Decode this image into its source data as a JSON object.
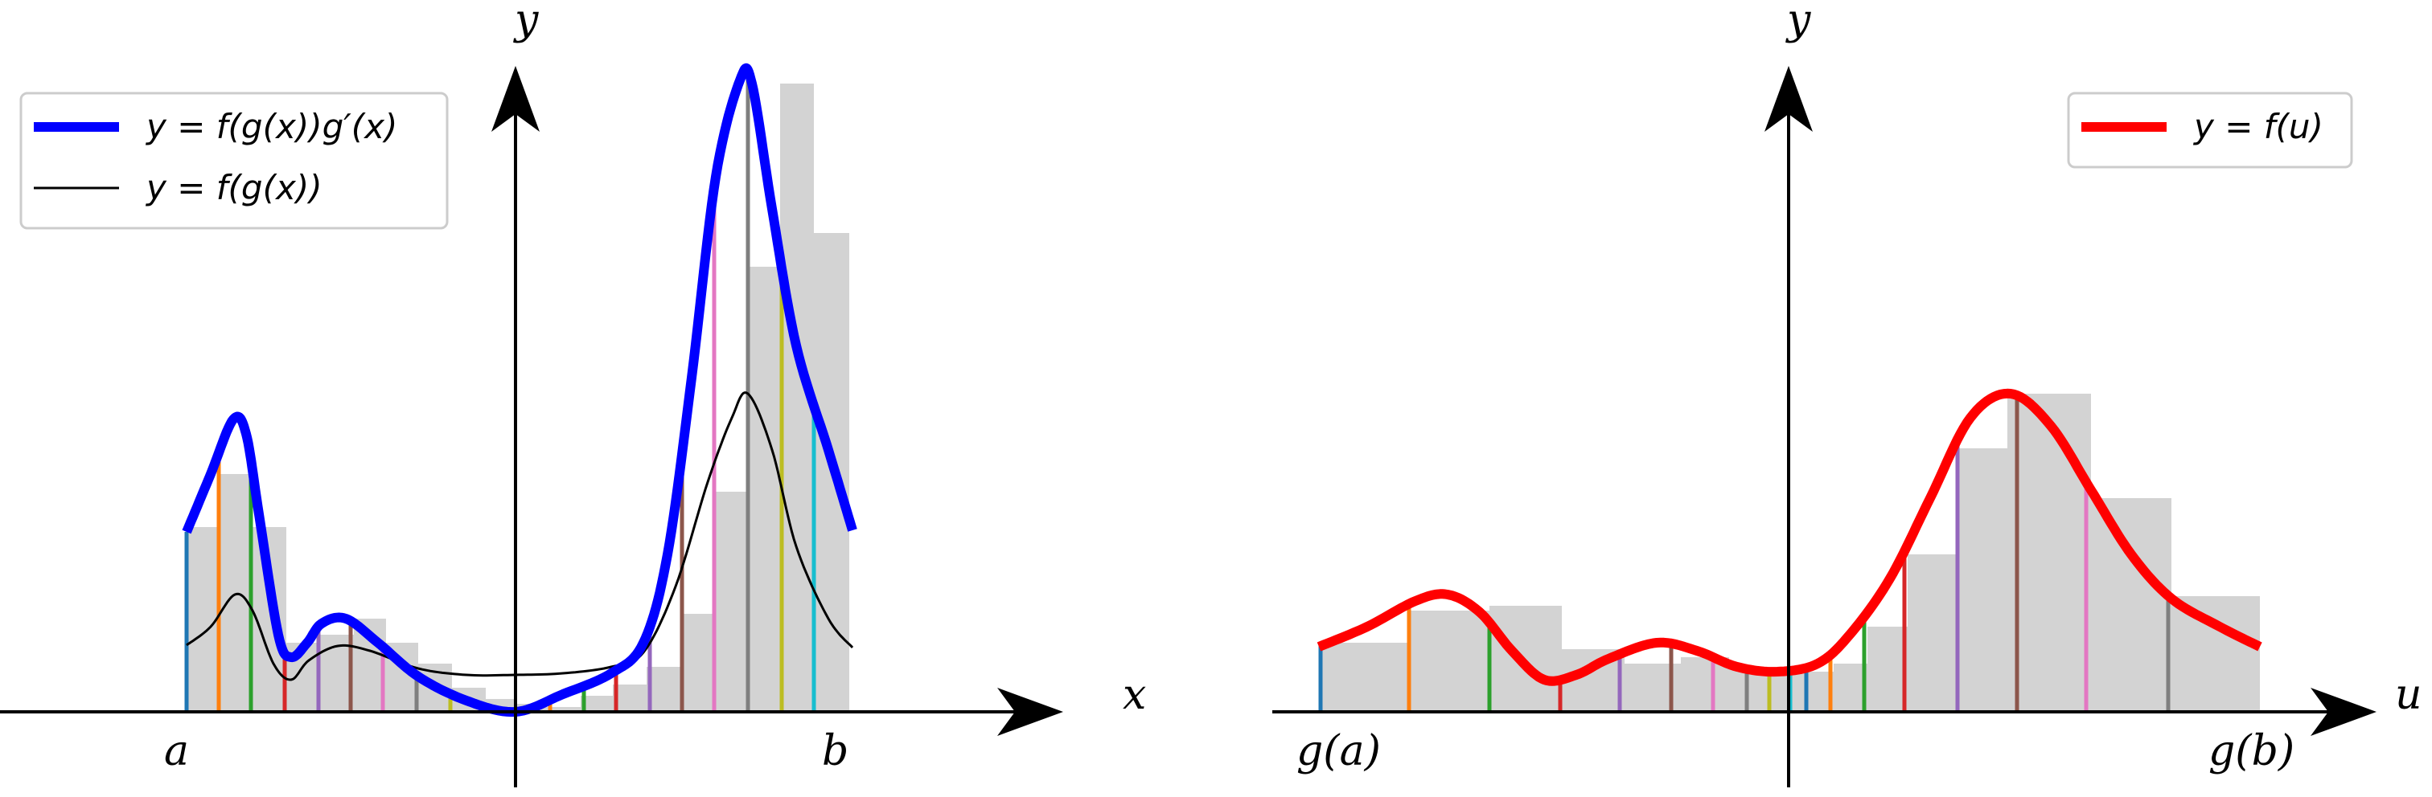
{
  "left": {
    "x_axis_label": "x",
    "y_axis_label": "y",
    "tick_a": "a",
    "tick_b": "b",
    "legend": [
      {
        "label": "y = f(g(x))g′(x)",
        "color": "#0000ff"
      },
      {
        "label": "y = f(g(x))",
        "color": "#000000"
      }
    ]
  },
  "right": {
    "x_axis_label": "u",
    "y_axis_label": "y",
    "tick_ga": "g(a)",
    "tick_gb": "g(b)",
    "legend": [
      {
        "label": "y = f(u)",
        "color": "#ff0000"
      }
    ]
  },
  "colors": {
    "left_curve": "#0000ff",
    "right_curve": "#ff0000",
    "thin_curve": "#000000",
    "rect_fill": "#d3d3d3",
    "marker_cycle": [
      "#1f77b4",
      "#ff7f0e",
      "#2ca02c",
      "#d62728",
      "#9467bd",
      "#8c564b",
      "#e377c2",
      "#7f7f7f",
      "#bcbd22",
      "#17becf"
    ]
  }
}
